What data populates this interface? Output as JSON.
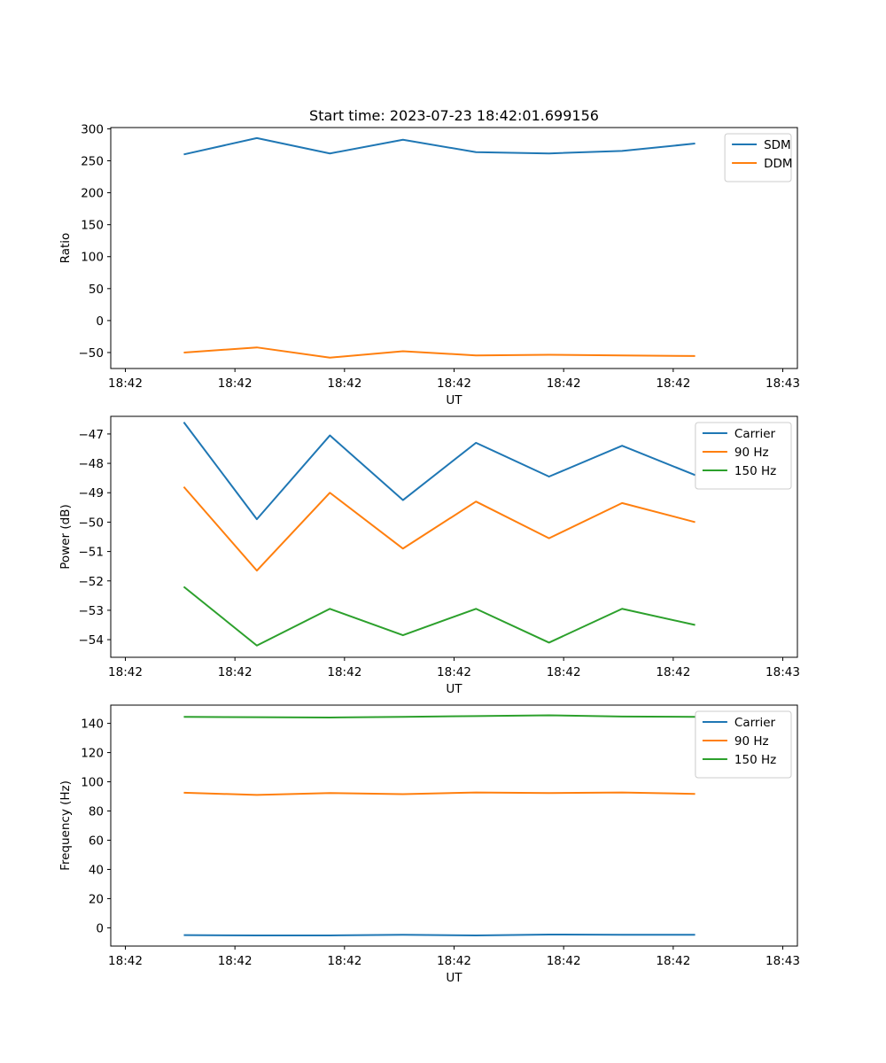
{
  "figure_title": "Start time: 2023-07-23 18:42:01.699156",
  "chart_data": [
    {
      "type": "line",
      "title": "Start time: 2023-07-23 18:42:01.699156",
      "xlabel": "UT",
      "ylabel": "Ratio",
      "x_tick_labels": [
        "18:42",
        "18:42",
        "18:42",
        "18:42",
        "18:42",
        "18:42",
        "18:43"
      ],
      "x": [
        1,
        2,
        3,
        4,
        5,
        6,
        7,
        8
      ],
      "xlim": [
        0,
        9.4
      ],
      "x_tick_values": [
        0.2,
        1.7,
        3.2,
        4.7,
        6.2,
        7.7,
        9.2
      ],
      "ylim": [
        -75,
        302
      ],
      "y_ticks": [
        300,
        250,
        200,
        150,
        100,
        50,
        0,
        -50
      ],
      "y_tick_labels": [
        "300",
        "250",
        "200",
        "150",
        "100",
        "50",
        "0",
        "−50"
      ],
      "legend_position": "top-right",
      "series": [
        {
          "name": "SDM",
          "color": "#1f77b4",
          "values": [
            260,
            285.5,
            261.5,
            283,
            263.5,
            261.5,
            265.5,
            277
          ]
        },
        {
          "name": "DDM",
          "color": "#ff7f0e",
          "values": [
            -50,
            -42,
            -58,
            -48,
            -54.5,
            -53.5,
            -54.5,
            -55.5
          ]
        }
      ]
    },
    {
      "type": "line",
      "xlabel": "UT",
      "ylabel": "Power (dB)",
      "x_tick_labels": [
        "18:42",
        "18:42",
        "18:42",
        "18:42",
        "18:42",
        "18:42",
        "18:43"
      ],
      "x": [
        1,
        2,
        3,
        4,
        5,
        6,
        7,
        8
      ],
      "xlim": [
        0,
        9.4
      ],
      "x_tick_values": [
        0.2,
        1.7,
        3.2,
        4.7,
        6.2,
        7.7,
        9.2
      ],
      "ylim": [
        -54.6,
        -46.4
      ],
      "y_ticks": [
        -47,
        -48,
        -49,
        -50,
        -51,
        -52,
        -53,
        -54
      ],
      "y_tick_labels": [
        "−47",
        "−48",
        "−49",
        "−50",
        "−51",
        "−52",
        "−53",
        "−54"
      ],
      "legend_position": "top-right",
      "series": [
        {
          "name": "Carrier",
          "color": "#1f77b4",
          "values": [
            -46.6,
            -49.9,
            -47.05,
            -49.25,
            -47.3,
            -48.45,
            -47.4,
            -48.4
          ]
        },
        {
          "name": "90 Hz",
          "color": "#ff7f0e",
          "values": [
            -48.8,
            -51.65,
            -49.0,
            -50.9,
            -49.3,
            -50.55,
            -49.35,
            -50.0
          ]
        },
        {
          "name": "150 Hz",
          "color": "#2ca02c",
          "values": [
            -52.2,
            -54.2,
            -52.95,
            -53.85,
            -52.95,
            -54.1,
            -52.95,
            -53.5
          ]
        }
      ]
    },
    {
      "type": "line",
      "xlabel": "UT",
      "ylabel": "Frequency (Hz)",
      "x_tick_labels": [
        "18:42",
        "18:42",
        "18:42",
        "18:42",
        "18:42",
        "18:42",
        "18:43"
      ],
      "x": [
        1,
        2,
        3,
        4,
        5,
        6,
        7,
        8
      ],
      "xlim": [
        0,
        9.4
      ],
      "x_tick_values": [
        0.2,
        1.7,
        3.2,
        4.7,
        6.2,
        7.7,
        9.2
      ],
      "ylim": [
        -12.5,
        152.5
      ],
      "y_ticks": [
        140,
        120,
        100,
        80,
        60,
        40,
        20,
        0
      ],
      "y_tick_labels": [
        "140",
        "120",
        "100",
        "80",
        "60",
        "40",
        "20",
        "0"
      ],
      "legend_position": "top-right",
      "series": [
        {
          "name": "Carrier",
          "color": "#1f77b4",
          "values": [
            -5,
            -5.2,
            -5.2,
            -4.8,
            -5.2,
            -4.6,
            -4.8,
            -4.8
          ]
        },
        {
          "name": "90 Hz",
          "color": "#ff7f0e",
          "values": [
            92.5,
            91,
            92.3,
            91.5,
            92.7,
            92.3,
            92.7,
            91.7
          ]
        },
        {
          "name": "150 Hz",
          "color": "#2ca02c",
          "values": [
            144.5,
            144.2,
            144,
            144.5,
            145,
            145.5,
            144.7,
            144.5
          ]
        }
      ]
    }
  ]
}
